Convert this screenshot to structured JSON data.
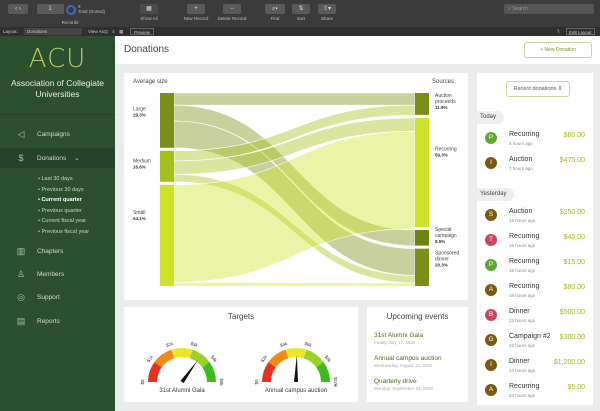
{
  "toolbar": {
    "record_number": "1",
    "total_count": "9",
    "total_label": "Total (Sorted)",
    "records_label": "Records",
    "show_all": "Show All",
    "new_record": "New Record",
    "delete_record": "Delete Record",
    "find": "Find",
    "sort": "Sort",
    "share": "Share",
    "search_placeholder": "Search"
  },
  "layoutbar": {
    "layout_label": "Layout:",
    "layout_value": "Donations",
    "view_as": "View As:",
    "preview": "Preview",
    "edit_layout": "Edit Layout"
  },
  "sidebar": {
    "logo": "ACU",
    "org": "Association of Collegiate Universities",
    "items": [
      {
        "label": "Campaigns",
        "icon": "megaphone-icon"
      },
      {
        "label": "Donations",
        "icon": "shield-dollar-icon"
      },
      {
        "label": "Chapters",
        "icon": "building-icon"
      },
      {
        "label": "Members",
        "icon": "person-star-icon"
      },
      {
        "label": "Support",
        "icon": "lifebuoy-icon"
      },
      {
        "label": "Reports",
        "icon": "document-icon"
      }
    ],
    "subitems": [
      "Last 30 days",
      "Previous 30 days",
      "Current quarter",
      "Previous quarter",
      "Current fiscal year",
      "Previous fiscal year"
    ],
    "current_subitem": "Current quarter"
  },
  "header": {
    "title": "Donations",
    "new_donation": "+ New Donation"
  },
  "chart_data": [
    {
      "type": "sankey",
      "left_title": "Average size",
      "right_title": "Sources",
      "sources": [
        {
          "name": "Large",
          "pct": "29.3%",
          "value": 29.3,
          "color": "#7b8f18"
        },
        {
          "name": "Medium",
          "pct": "16.6%",
          "value": 16.6,
          "color": "#a6c01b"
        },
        {
          "name": "Small",
          "pct": "54.1%",
          "value": 54.1,
          "color": "#cde22b"
        }
      ],
      "targets": [
        {
          "name": "Auction proceeds",
          "pct": "11.9%",
          "value": 11.9
        },
        {
          "name": "Recurring",
          "pct": "59.3%",
          "value": 59.3
        },
        {
          "name": "Special campaign",
          "pct": "8.5%",
          "value": 8.5
        },
        {
          "name": "Sponsored dinner",
          "pct": "20.3%",
          "value": 20.3
        }
      ],
      "flows": [
        [
          "Large",
          "Auction proceeds",
          6.5
        ],
        [
          "Large",
          "Special campaign",
          8.5
        ],
        [
          "Large",
          "Sponsored dinner",
          14.3
        ],
        [
          "Medium",
          "Auction proceeds",
          5.4
        ],
        [
          "Medium",
          "Recurring",
          7.2
        ],
        [
          "Medium",
          "Sponsored dinner",
          4.0
        ],
        [
          "Small",
          "Recurring",
          52.1
        ],
        [
          "Small",
          "Sponsored dinner",
          2.0
        ]
      ]
    },
    {
      "type": "gauge",
      "title": "Targets",
      "gauges": [
        {
          "label": "31st Alumni Gala",
          "min": 0,
          "max": 5000,
          "ticks": [
            "$0",
            "$1k",
            "$2k",
            "$3k",
            "$4k",
            "$5k"
          ],
          "value": 3500
        },
        {
          "label": "Annual campus auction",
          "min": 0,
          "max": 10000,
          "ticks": [
            "$0",
            "$2k",
            "$4k",
            "$6k",
            "$8k",
            "$10k"
          ],
          "value": 5100
        }
      ],
      "band_colors": [
        "#e8321f",
        "#f28a16",
        "#ebe82a",
        "#9ad22a",
        "#3cbc1f"
      ]
    }
  ],
  "events": {
    "title": "Upcoming events",
    "items": [
      {
        "name": "31st Alumni Gala",
        "date": "Friday, July 17, 2020"
      },
      {
        "name": "Annual campus auction",
        "date": "Wednesday, August 12, 2020"
      },
      {
        "name": "Quarterly drive",
        "date": "Monday, September 21, 2020"
      }
    ]
  },
  "recent": {
    "selector": "Recent donations ⇕",
    "groups": [
      {
        "label": "Today",
        "items": [
          {
            "initial": "P",
            "color": "#5ea832",
            "type": "Recurring",
            "time": "4 hours ago",
            "amount": "$60.00"
          },
          {
            "initial": "I",
            "color": "#7a5a10",
            "type": "Auction",
            "time": "7 hours ago",
            "amount": "$475.00"
          }
        ]
      },
      {
        "label": "Yesterday",
        "items": [
          {
            "initial": "S",
            "color": "#7a5a10",
            "type": "Auction",
            "time": "16 hours ago",
            "amount": "$250.00"
          },
          {
            "initial": "T",
            "color": "#c9475c",
            "type": "Recurring",
            "time": "18 hours ago",
            "amount": "$40.00"
          },
          {
            "initial": "P",
            "color": "#5ea832",
            "type": "Recurring",
            "time": "18 hours ago",
            "amount": "$15.00"
          },
          {
            "initial": "A",
            "color": "#7a5a10",
            "type": "Recurring",
            "time": "18 hours ago",
            "amount": "$80.00"
          },
          {
            "initial": "B",
            "color": "#c9475c",
            "type": "Dinner",
            "time": "22 hours ago",
            "amount": "$500.00"
          },
          {
            "initial": "G",
            "color": "#7a5a10",
            "type": "Campaign #2",
            "time": "22 hours ago",
            "amount": "$300.00"
          },
          {
            "initial": "I",
            "color": "#7a5a10",
            "type": "Dinner",
            "time": "23 hours ago",
            "amount": "$1,200.00"
          },
          {
            "initial": "A",
            "color": "#7a5a10",
            "type": "Recurring",
            "time": "23 hours ago",
            "amount": "$5.00"
          }
        ]
      }
    ]
  }
}
